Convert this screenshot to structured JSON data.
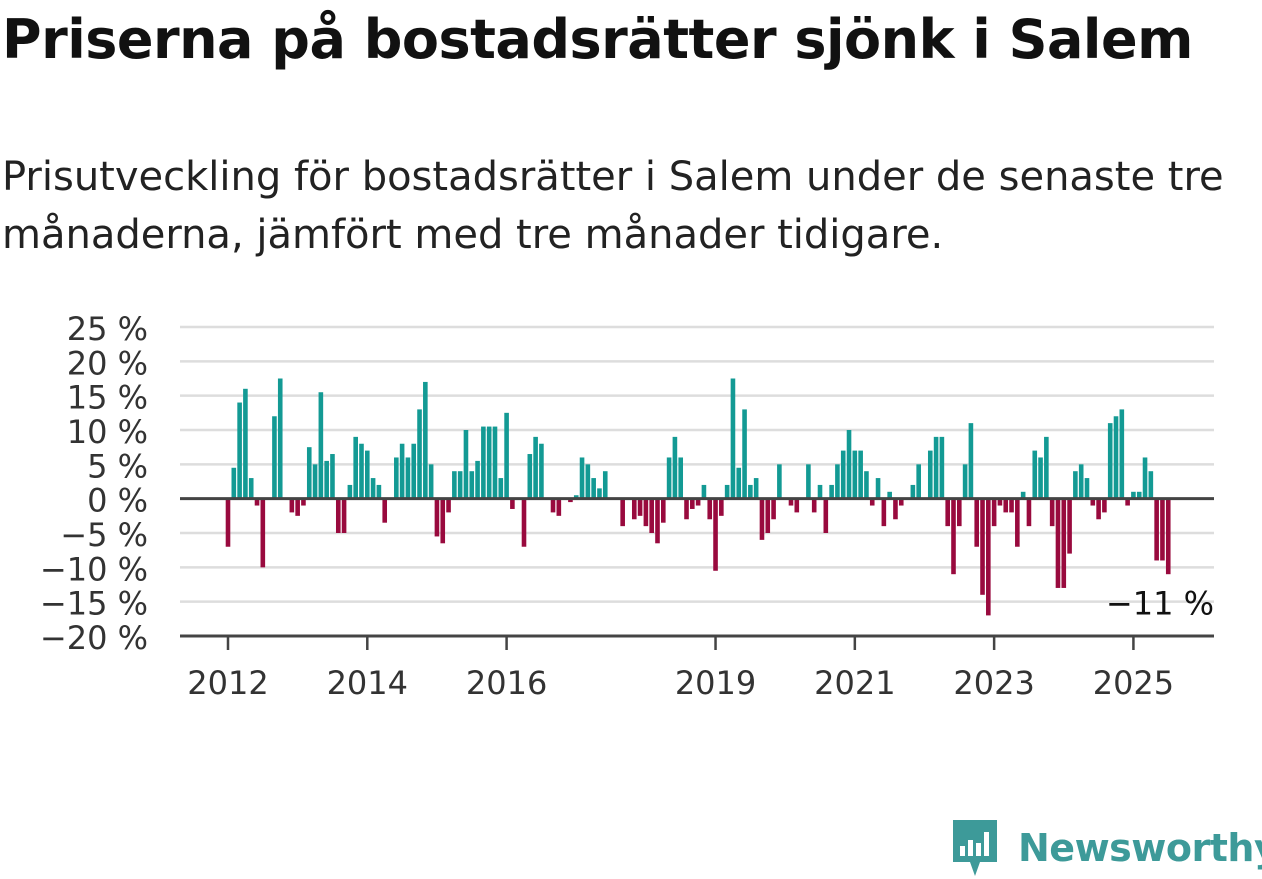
{
  "title": "Priserna på bostadsrätter sjönk i Salem",
  "subtitle": "Prisutveckling för bostadsrätter i Salem under de senaste tre månaderna, jämfört med tre månader tidigare.",
  "brand": {
    "name": "Newsworthy",
    "icon": "bar-chart-speech-bubble-icon"
  },
  "colors": {
    "positive": "#139a94",
    "negative": "#990a3e",
    "axis": "#444444",
    "grid": "#dddddd",
    "brand": "#3d9a99"
  },
  "chart_data": {
    "type": "bar",
    "title": "",
    "xlabel": "",
    "ylabel": "",
    "ylim": [
      -20,
      25
    ],
    "yticks": [
      25,
      20,
      15,
      10,
      5,
      0,
      -5,
      -10,
      -15,
      -20
    ],
    "ytick_labels": [
      "25 %",
      "20 %",
      "15 %",
      "10 %",
      "5 %",
      "0 %",
      "−5 %",
      "−10 %",
      "−15 %",
      "−20 %"
    ],
    "xticks": [
      {
        "label": "2012",
        "index": 0
      },
      {
        "label": "2014",
        "index": 24
      },
      {
        "label": "2016",
        "index": 48
      },
      {
        "label": "2019",
        "index": 84
      },
      {
        "label": "2021",
        "index": 108
      },
      {
        "label": "2023",
        "index": 132
      },
      {
        "label": "2025",
        "index": 156
      }
    ],
    "grid": true,
    "annotation": "−11 %",
    "series": [
      {
        "start": "2012-01",
        "values": [
          -7,
          4.5,
          14,
          16,
          3,
          -1,
          -10,
          0,
          12,
          17.5,
          0,
          -2,
          -2.5,
          -1,
          7.5,
          5,
          15.5,
          5.5,
          6.5,
          -5,
          -5,
          2,
          9,
          8,
          7,
          3,
          2,
          -3.5,
          0,
          6,
          8,
          6,
          8,
          13,
          17,
          5,
          -5.5,
          -6.5,
          -2,
          4,
          4,
          10,
          4,
          5.5,
          10.5,
          10.5,
          10.5,
          3,
          12.5,
          -1.5,
          0,
          -7,
          6.5,
          9,
          8,
          0,
          -2,
          -2.5,
          0,
          -0.5,
          0.5,
          6,
          5,
          3,
          1.5,
          4,
          0,
          0,
          -4,
          0,
          -3,
          -2.5,
          -4,
          -5,
          -6.5,
          -3.5,
          6,
          9,
          6,
          -3,
          -1.5,
          -1,
          2,
          -3,
          -10.5,
          -2.5,
          2,
          17.5,
          4.5,
          13,
          2,
          3,
          -6,
          -5,
          -3,
          5,
          0,
          -1,
          -2,
          0,
          5,
          -2,
          2,
          -5,
          2,
          5,
          7,
          10,
          7,
          7,
          4,
          -1,
          3,
          -4,
          1,
          -3,
          -1,
          0,
          2,
          5,
          0,
          7,
          9,
          9,
          -4,
          -11,
          -4,
          5,
          11,
          -7,
          -14,
          -17,
          -4,
          -1,
          -2,
          -2,
          -7,
          1,
          -4,
          7,
          6,
          9,
          -4,
          -13,
          -13,
          -8,
          4,
          5,
          3,
          -1,
          -3,
          -2,
          11,
          12,
          13,
          -1,
          1,
          1,
          6,
          4,
          -9,
          -9,
          -11
        ]
      }
    ]
  }
}
